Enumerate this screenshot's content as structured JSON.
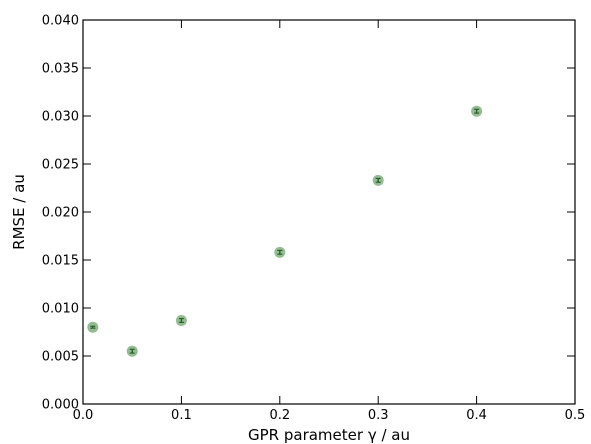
{
  "chart_data": {
    "type": "scatter",
    "title": "",
    "xlabel": "GPR parameter γ / au",
    "ylabel": "RMSE / au",
    "xlim": [
      0.0,
      0.5
    ],
    "ylim": [
      0.0,
      0.04
    ],
    "x_ticks": [
      "0.0",
      "0.1",
      "0.2",
      "0.3",
      "0.4",
      "0.5"
    ],
    "y_ticks": [
      "0.000",
      "0.005",
      "0.010",
      "0.015",
      "0.020",
      "0.025",
      "0.030",
      "0.035",
      "0.040"
    ],
    "x_tick_values": [
      0.0,
      0.1,
      0.2,
      0.3,
      0.4,
      0.5
    ],
    "y_tick_values": [
      0.0,
      0.005,
      0.01,
      0.015,
      0.02,
      0.025,
      0.03,
      0.035,
      0.04
    ],
    "grid": false,
    "legend": "none",
    "series": [
      {
        "x": [
          0.01,
          0.05,
          0.1,
          0.2,
          0.3,
          0.4
        ],
        "y": [
          0.008,
          0.0055,
          0.0087,
          0.0158,
          0.0233,
          0.0305
        ],
        "yerr": [
          0.0001,
          0.0002,
          0.0002,
          0.0002,
          0.0002,
          0.0002
        ],
        "marker_color": "#7fb27f",
        "errorbar_color": "#2e5e2e"
      }
    ]
  }
}
